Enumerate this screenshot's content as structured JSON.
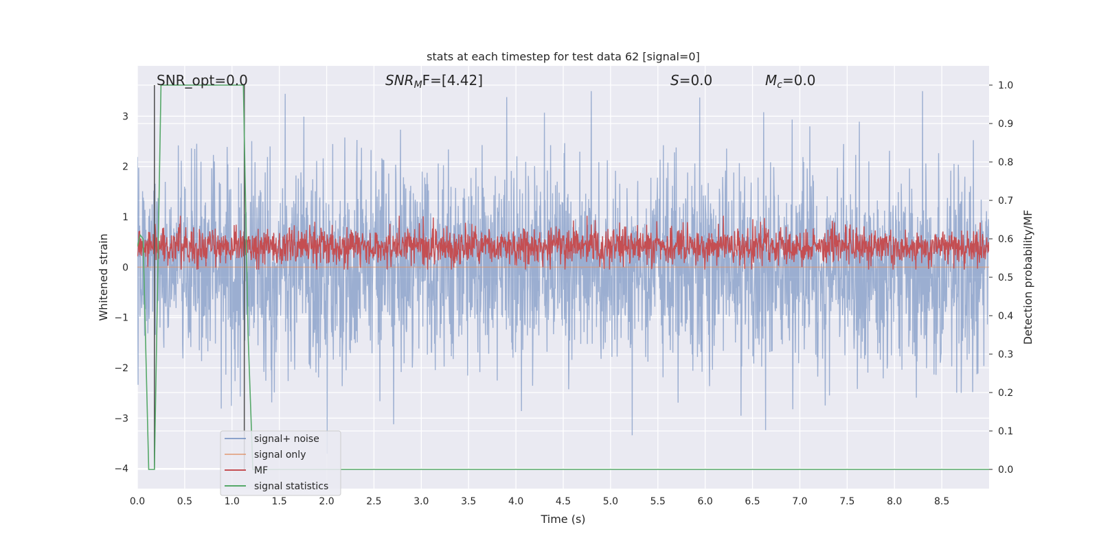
{
  "chart_data": {
    "type": "line",
    "title": "stats at each timestep for test data 62 [signal=0]",
    "xlabel": "Time (s)",
    "ylabel_left": "Whitened strain",
    "ylabel_right": "Detection probability/MF",
    "xlim": [
      0.0,
      9.0
    ],
    "ylim_left": [
      -4.4,
      4.0
    ],
    "ylim_right": [
      -0.05,
      1.05
    ],
    "x_ticks": [
      0.0,
      0.5,
      1.0,
      1.5,
      2.0,
      2.5,
      3.0,
      3.5,
      4.0,
      4.5,
      5.0,
      5.5,
      6.0,
      6.5,
      7.0,
      7.5,
      8.0,
      8.5
    ],
    "x_tick_labels": [
      "0.0",
      "0.5",
      "1.0",
      "1.5",
      "2.0",
      "2.5",
      "3.0",
      "3.5",
      "4.0",
      "4.5",
      "5.0",
      "5.5",
      "6.0",
      "6.5",
      "7.0",
      "7.5",
      "8.0",
      "8.5"
    ],
    "y_left_ticks": [
      -4,
      -3,
      -2,
      -1,
      0,
      1,
      2,
      3
    ],
    "y_left_tick_labels": [
      "−4",
      "−3",
      "−2",
      "−1",
      "0",
      "1",
      "2",
      "3"
    ],
    "y_right_ticks": [
      0.0,
      0.1,
      0.2,
      0.3,
      0.4,
      0.5,
      0.6,
      0.7,
      0.8,
      0.9,
      1.0
    ],
    "y_right_tick_labels": [
      "0.0",
      "0.1",
      "0.2",
      "0.3",
      "0.4",
      "0.5",
      "0.6",
      "0.7",
      "0.8",
      "0.9",
      "1.0"
    ],
    "grid": true,
    "legend_position": "lower-left",
    "annotations": {
      "snr_opt": "SNR_opt=0.0",
      "snr_mf_main": "SNR",
      "snr_mf_sub": "M",
      "snr_mf_rest": "F=[4.42]",
      "s_var": "S",
      "s_rest": "=0.0",
      "mc_var": "M",
      "mc_sub": "c",
      "mc_rest": "=0.0"
    },
    "vertical_lines_x": [
      0.18,
      1.13
    ],
    "series": [
      {
        "name": "signal+ noise",
        "axis": "left",
        "color": "#4c72b0",
        "opacity": 0.5,
        "kind": "noise",
        "typical_range": [
          -2.0,
          2.0
        ],
        "extreme_range": [
          -4.0,
          3.5
        ]
      },
      {
        "name": "signal only",
        "axis": "left",
        "color": "#dd8452",
        "opacity": 0.5,
        "kind": "constant",
        "value": 0.0
      },
      {
        "name": "MF",
        "axis": "right",
        "color": "#c44e52",
        "kind": "noise",
        "typical_range": [
          0.53,
          0.63
        ],
        "extreme_range": [
          0.52,
          0.66
        ]
      },
      {
        "name": "signal statistics",
        "axis": "right",
        "color": "#55a868",
        "kind": "path",
        "x": [
          0.0,
          0.03,
          0.06,
          0.09,
          0.12,
          0.18,
          0.25,
          1.12,
          1.17,
          1.22,
          1.35,
          9.0
        ],
        "y": [
          0.58,
          0.61,
          0.6,
          0.3,
          0.0,
          0.0,
          1.0,
          1.0,
          0.35,
          0.0,
          0.0,
          0.0
        ]
      }
    ]
  }
}
